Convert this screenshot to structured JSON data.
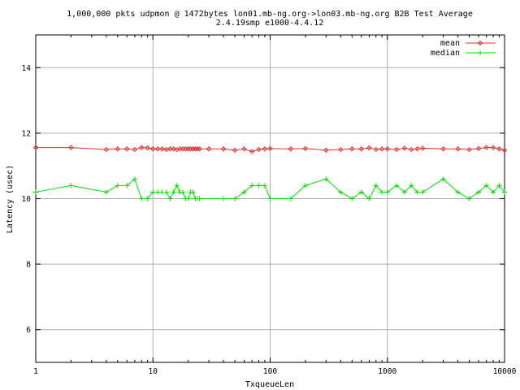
{
  "chart_data": {
    "type": "line",
    "title_line1": "1,000,000 pkts udpmon @ 1472bytes lon01.mb-ng.org->lon03.mb-ng.org B2B Test Average",
    "title_line2": "2.4.19smp e1000-4.4.12",
    "xlabel": "TxqueueLen",
    "ylabel": "Latency (usec)",
    "x_scale": "log",
    "xlim": [
      1,
      10000
    ],
    "ylim": [
      5,
      15
    ],
    "x_ticks": [
      1,
      10,
      100,
      1000,
      10000
    ],
    "x_tick_labels": [
      "1",
      "10",
      "100",
      "1000",
      "10000"
    ],
    "y_ticks": [
      6,
      8,
      10,
      12,
      14
    ],
    "y_tick_labels": [
      "6",
      "8",
      "10",
      "12",
      "14"
    ],
    "grid": true,
    "legend_position": "top-right",
    "colors": {
      "mean": "#e03030",
      "median": "#00dd00",
      "grid": "#b0b0b0",
      "axis": "#000000"
    },
    "series": [
      {
        "name": "mean",
        "marker": "diamond",
        "x": [
          1,
          2,
          4,
          5,
          6,
          7,
          8,
          9,
          10,
          11,
          12,
          13,
          14,
          15,
          16,
          17,
          18,
          19,
          20,
          21,
          22,
          23,
          24,
          25,
          30,
          40,
          50,
          60,
          70,
          80,
          90,
          100,
          150,
          200,
          300,
          400,
          500,
          600,
          700,
          800,
          900,
          1000,
          1200,
          1400,
          1600,
          1800,
          2000,
          3000,
          4000,
          5000,
          6000,
          7000,
          8000,
          9000,
          10000
        ],
        "y": [
          11.56,
          11.56,
          11.5,
          11.52,
          11.52,
          11.5,
          11.56,
          11.55,
          11.52,
          11.52,
          11.52,
          11.5,
          11.52,
          11.52,
          11.5,
          11.52,
          11.52,
          11.52,
          11.52,
          11.52,
          11.52,
          11.52,
          11.52,
          11.52,
          11.52,
          11.52,
          11.48,
          11.52,
          11.44,
          11.5,
          11.52,
          11.53,
          11.52,
          11.53,
          11.48,
          11.5,
          11.52,
          11.52,
          11.55,
          11.5,
          11.52,
          11.52,
          11.5,
          11.54,
          11.5,
          11.52,
          11.54,
          11.52,
          11.52,
          11.5,
          11.53,
          11.56,
          11.56,
          11.52,
          11.48
        ]
      },
      {
        "name": "median",
        "marker": "plus",
        "x": [
          1,
          2,
          4,
          5,
          6,
          7,
          8,
          9,
          10,
          11,
          12,
          13,
          14,
          15,
          16,
          17,
          18,
          19,
          20,
          21,
          22,
          23,
          24,
          25,
          40,
          50,
          60,
          70,
          80,
          90,
          100,
          150,
          200,
          300,
          400,
          500,
          600,
          700,
          800,
          900,
          1000,
          1200,
          1400,
          1600,
          1800,
          2000,
          3000,
          4000,
          5000,
          6000,
          7000,
          8000,
          9000,
          10000
        ],
        "y": [
          10.2,
          10.4,
          10.2,
          10.4,
          10.4,
          10.6,
          10.0,
          10.0,
          10.2,
          10.2,
          10.2,
          10.2,
          10.0,
          10.2,
          10.4,
          10.2,
          10.2,
          10.0,
          10.0,
          10.2,
          10.2,
          10.0,
          10.0,
          10.0,
          10.0,
          10.0,
          10.2,
          10.4,
          10.4,
          10.4,
          10.0,
          10.0,
          10.4,
          10.6,
          10.2,
          10.0,
          10.2,
          10.0,
          10.4,
          10.2,
          10.2,
          10.4,
          10.2,
          10.4,
          10.2,
          10.2,
          10.6,
          10.2,
          10.0,
          10.2,
          10.4,
          10.2,
          10.4,
          10.2
        ]
      }
    ]
  }
}
